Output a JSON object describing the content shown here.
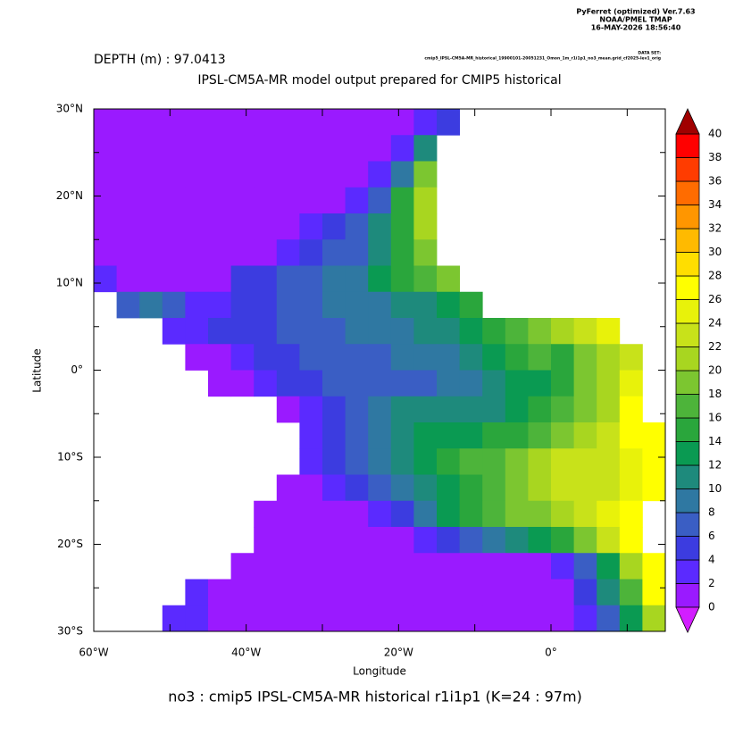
{
  "chart_data": {
    "type": "heatmap",
    "header": [
      "PyFerret (optimized) Ver.7.63",
      "NOAA/PMEL TMAP",
      "16-MAY-2026 18:56:40"
    ],
    "dataset_label": "DATA SET:",
    "dataset": "cmip5_IPSL-CM5A-MR_historical_19900101-20051231_Omon_1m_r1i1p1_no3_mean.grid_cf2025-lev1_orig",
    "subtitle": "DEPTH (m) : 97.0413",
    "title": "IPSL-CM5A-MR model output prepared for CMIP5 historical",
    "xlabel": "Longitude",
    "ylabel": "Latitude",
    "footer": "no3 : cmip5 IPSL-CM5A-MR historical r1i1p1   (K=24 : 97m)",
    "xlim": [
      -60,
      15
    ],
    "ylim": [
      -30,
      30
    ],
    "xticks": [
      {
        "value": -60,
        "label": "60°W"
      },
      {
        "value": -40,
        "label": "40°W"
      },
      {
        "value": -20,
        "label": "20°W"
      },
      {
        "value": 0,
        "label": "0°"
      }
    ],
    "xminor": [
      -50,
      -30,
      -10,
      10
    ],
    "yticks": [
      {
        "value": -30,
        "label": "30°S"
      },
      {
        "value": -20,
        "label": "20°S"
      },
      {
        "value": -10,
        "label": "10°S"
      },
      {
        "value": 0,
        "label": "0°"
      },
      {
        "value": 10,
        "label": "10°N"
      },
      {
        "value": 20,
        "label": "20°N"
      },
      {
        "value": 30,
        "label": "30°N"
      }
    ],
    "yminor": [
      -25,
      -15,
      -5,
      5,
      15,
      25
    ],
    "xbins": [
      -60,
      -57,
      -54,
      -51,
      -48,
      -45,
      -42,
      -39,
      -36,
      -33,
      -30,
      -27,
      -24,
      -21,
      -18,
      -15,
      -12,
      -9,
      -6,
      -3,
      0,
      3,
      6,
      9,
      12,
      15
    ],
    "ybins": [
      30,
      27,
      24,
      21,
      18,
      15,
      12,
      9,
      6,
      3,
      0,
      -3,
      -6,
      -9,
      -12,
      -15,
      -18,
      -21,
      -24,
      -27,
      -30
    ],
    "values": [
      [
        0,
        0,
        0,
        0,
        0,
        0,
        0,
        0,
        0,
        0,
        0,
        0,
        0,
        0,
        3,
        5,
        null,
        null,
        null,
        null,
        null,
        null,
        null,
        null,
        null
      ],
      [
        0,
        0,
        0,
        0,
        0,
        0,
        0,
        0,
        0,
        0,
        0,
        0,
        0,
        3,
        10,
        null,
        null,
        null,
        null,
        null,
        null,
        null,
        null,
        null,
        null
      ],
      [
        0,
        0,
        0,
        0,
        0,
        0,
        0,
        0,
        0,
        0,
        0,
        0,
        2,
        8,
        18,
        null,
        null,
        null,
        null,
        null,
        null,
        null,
        null,
        null,
        null
      ],
      [
        0,
        0,
        0,
        0,
        0,
        0,
        0,
        0,
        0,
        0,
        0,
        2,
        6,
        14,
        20,
        null,
        null,
        null,
        null,
        null,
        null,
        null,
        null,
        null,
        null
      ],
      [
        0,
        0,
        0,
        0,
        0,
        0,
        0,
        0,
        0,
        2,
        4,
        6,
        10,
        14,
        20,
        null,
        null,
        null,
        null,
        null,
        null,
        null,
        null,
        null,
        null
      ],
      [
        0,
        0,
        0,
        0,
        0,
        0,
        0,
        0,
        2,
        4,
        6,
        7,
        10,
        14,
        18,
        null,
        null,
        null,
        null,
        null,
        null,
        null,
        null,
        null,
        null
      ],
      [
        2,
        1,
        0,
        0,
        0,
        0,
        4,
        5,
        6,
        7,
        8,
        9,
        12,
        14,
        16,
        18,
        null,
        null,
        null,
        null,
        null,
        null,
        null,
        null,
        null
      ],
      [
        null,
        6,
        8,
        6,
        3,
        3,
        4,
        5,
        6,
        7,
        8,
        8,
        9,
        10,
        10,
        12,
        14,
        null,
        null,
        null,
        null,
        null,
        null,
        null,
        null
      ],
      [
        null,
        null,
        null,
        3,
        3,
        4,
        4,
        5,
        6,
        6,
        7,
        8,
        8,
        9,
        10,
        11,
        12,
        14,
        16,
        18,
        20,
        22,
        24,
        null,
        null
      ],
      [
        null,
        null,
        null,
        null,
        0,
        0,
        3,
        4,
        5,
        6,
        7,
        7,
        7,
        8,
        8,
        9,
        10,
        12,
        14,
        16,
        14,
        18,
        20,
        22,
        null
      ],
      [
        null,
        null,
        null,
        null,
        null,
        0,
        0,
        2,
        4,
        5,
        6,
        6,
        6,
        6,
        7,
        8,
        9,
        10,
        12,
        12,
        14,
        18,
        20,
        24,
        null
      ],
      [
        null,
        null,
        null,
        null,
        null,
        null,
        null,
        null,
        1,
        3,
        5,
        6,
        8,
        10,
        10,
        10,
        10,
        10,
        12,
        14,
        16,
        18,
        20,
        26,
        null
      ],
      [
        null,
        null,
        null,
        null,
        null,
        null,
        null,
        null,
        null,
        3,
        5,
        7,
        9,
        11,
        12,
        12,
        13,
        14,
        14,
        16,
        18,
        20,
        22,
        26,
        26
      ],
      [
        null,
        null,
        null,
        null,
        null,
        null,
        null,
        null,
        null,
        3,
        5,
        6,
        8,
        10,
        12,
        14,
        16,
        16,
        18,
        20,
        22,
        22,
        22,
        24,
        26
      ],
      [
        null,
        null,
        null,
        null,
        null,
        null,
        null,
        null,
        0,
        1,
        3,
        5,
        7,
        9,
        11,
        12,
        14,
        16,
        18,
        20,
        22,
        22,
        22,
        24,
        26
      ],
      [
        null,
        null,
        null,
        null,
        null,
        null,
        null,
        0,
        0,
        0,
        0,
        1,
        3,
        5,
        8,
        12,
        14,
        16,
        18,
        18,
        20,
        22,
        24,
        26,
        null
      ],
      [
        null,
        null,
        null,
        null,
        null,
        null,
        null,
        0,
        0,
        0,
        0,
        0,
        0,
        0,
        2,
        4,
        6,
        8,
        10,
        12,
        14,
        18,
        22,
        26,
        null
      ],
      [
        null,
        null,
        null,
        null,
        null,
        null,
        0,
        0,
        0,
        0,
        0,
        0,
        0,
        0,
        0,
        0,
        0,
        0,
        0,
        1,
        3,
        6,
        12,
        20,
        26
      ],
      [
        null,
        null,
        null,
        null,
        3,
        0,
        0,
        0,
        0,
        0,
        0,
        0,
        0,
        0,
        0,
        0,
        0,
        0,
        0,
        0,
        0,
        4,
        10,
        16,
        26
      ],
      [
        null,
        null,
        null,
        3,
        2,
        0,
        0,
        0,
        0,
        0,
        0,
        0,
        0,
        0,
        0,
        0,
        0,
        0,
        0,
        0,
        0,
        2,
        6,
        12,
        20
      ]
    ],
    "levels": [
      0,
      2,
      4,
      6,
      8,
      10,
      12,
      14,
      16,
      18,
      20,
      22,
      24,
      26,
      28,
      30,
      32,
      34,
      36,
      38,
      40
    ],
    "colors": [
      "#9a1aff",
      "#5b2aff",
      "#3c3ce0",
      "#3a5ec4",
      "#2f78a2",
      "#1e8a7c",
      "#0a9a52",
      "#2aa63c",
      "#4db43a",
      "#7cc630",
      "#a8d620",
      "#c8e21a",
      "#e8f20a",
      "#ffff00",
      "#ffde00",
      "#ffba00",
      "#ff9600",
      "#ff6c00",
      "#ff3c00",
      "#ff0000"
    ],
    "under_color": "#d21eff",
    "over_color": "#a00000"
  }
}
